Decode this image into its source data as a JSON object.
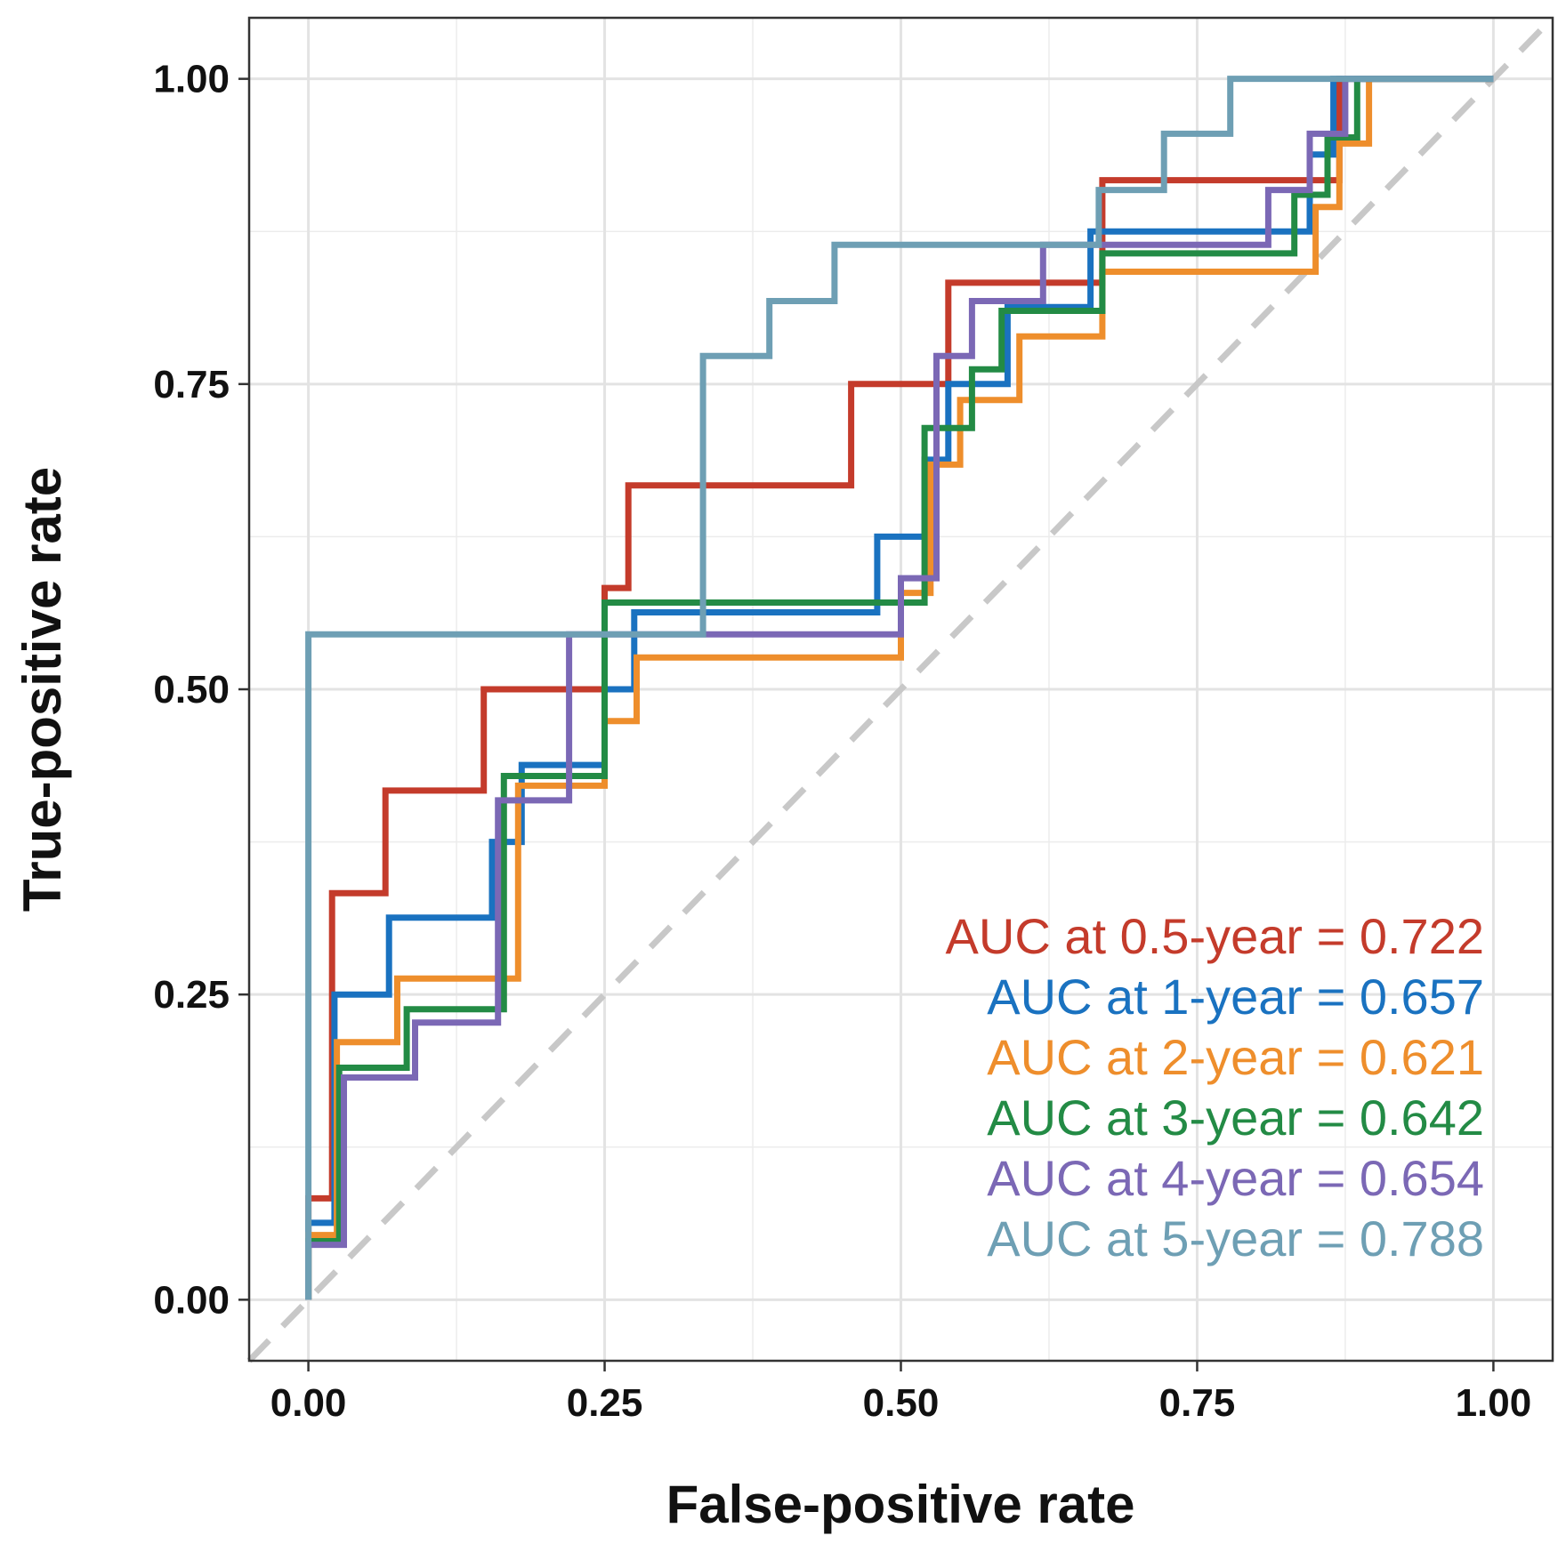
{
  "chart_data": {
    "type": "line",
    "subtype": "roc-step",
    "title": "",
    "xlabel": "False-positive rate",
    "ylabel": "True-positive rate",
    "xlim": [
      -0.05,
      1.05
    ],
    "ylim": [
      -0.05,
      1.05
    ],
    "grid": true,
    "x_ticks": [
      0.0,
      0.25,
      0.5,
      0.75,
      1.0
    ],
    "x_tick_labels": [
      "0.00",
      "0.25",
      "0.50",
      "0.75",
      "1.00"
    ],
    "y_ticks": [
      0.0,
      0.25,
      0.5,
      0.75,
      1.0
    ],
    "y_tick_labels": [
      "0.00",
      "0.25",
      "0.50",
      "0.75",
      "1.00"
    ],
    "reference_line": {
      "x": [
        -0.05,
        1.05
      ],
      "y": [
        -0.05,
        1.05
      ],
      "style": "dashed",
      "color": "#c8c8c8"
    },
    "legend_position": "bottom-right",
    "series": [
      {
        "name": "AUC at 0.5-year = 0.722",
        "color": "#c43b2b",
        "x": [
          0,
          0,
          0.02,
          0.02,
          0.065,
          0.065,
          0.148,
          0.148,
          0.25,
          0.25,
          0.27,
          0.27,
          0.458,
          0.458,
          0.54,
          0.54,
          0.67,
          0.67,
          0.85,
          0.85,
          0.85,
          0.87,
          0.87,
          1.0
        ],
        "y": [
          0,
          0.083,
          0.083,
          0.333,
          0.333,
          0.417,
          0.417,
          0.5,
          0.5,
          0.583,
          0.583,
          0.667,
          0.667,
          0.75,
          0.75,
          0.833,
          0.833,
          0.917,
          0.917,
          0.917,
          0.917,
          0.917,
          1.0,
          1.0
        ]
      },
      {
        "name": "AUC at 1-year = 0.657",
        "color": "#1a72c0",
        "x": [
          0,
          0,
          0.022,
          0.022,
          0.068,
          0.068,
          0.155,
          0.155,
          0.18,
          0.18,
          0.25,
          0.25,
          0.275,
          0.275,
          0.48,
          0.48,
          0.52,
          0.52,
          0.54,
          0.54,
          0.59,
          0.59,
          0.66,
          0.66,
          0.845,
          0.845,
          0.85,
          0.85,
          0.865,
          0.865,
          1.0
        ],
        "y": [
          0,
          0.063,
          0.063,
          0.25,
          0.25,
          0.313,
          0.313,
          0.375,
          0.375,
          0.438,
          0.438,
          0.5,
          0.5,
          0.563,
          0.563,
          0.625,
          0.625,
          0.688,
          0.688,
          0.75,
          0.75,
          0.813,
          0.813,
          0.875,
          0.875,
          0.938,
          0.938,
          0.938,
          0.938,
          1.0,
          1.0
        ]
      },
      {
        "name": "AUC at 2-year = 0.621",
        "color": "#ee8e2c",
        "x": [
          0,
          0,
          0.024,
          0.024,
          0.075,
          0.075,
          0.177,
          0.177,
          0.25,
          0.25,
          0.277,
          0.277,
          0.5,
          0.5,
          0.525,
          0.525,
          0.55,
          0.55,
          0.6,
          0.6,
          0.67,
          0.67,
          0.85,
          0.85,
          0.87,
          0.87,
          0.895,
          0.895,
          1.0
        ],
        "y": [
          0,
          0.053,
          0.053,
          0.211,
          0.211,
          0.263,
          0.263,
          0.421,
          0.421,
          0.474,
          0.474,
          0.526,
          0.526,
          0.579,
          0.579,
          0.684,
          0.684,
          0.737,
          0.737,
          0.789,
          0.789,
          0.842,
          0.842,
          0.895,
          0.895,
          0.947,
          0.947,
          1.0,
          1.0
        ]
      },
      {
        "name": "AUC at 3-year = 0.642",
        "color": "#238b45",
        "x": [
          0,
          0,
          0.026,
          0.026,
          0.083,
          0.083,
          0.165,
          0.165,
          0.25,
          0.25,
          0.52,
          0.52,
          0.56,
          0.56,
          0.585,
          0.585,
          0.67,
          0.67,
          0.832,
          0.832,
          0.86,
          0.86,
          0.885,
          0.885,
          1.0
        ],
        "y": [
          0,
          0.048,
          0.048,
          0.19,
          0.19,
          0.238,
          0.238,
          0.429,
          0.429,
          0.571,
          0.571,
          0.714,
          0.714,
          0.762,
          0.762,
          0.81,
          0.81,
          0.857,
          0.857,
          0.905,
          0.905,
          0.952,
          0.952,
          1.0,
          1.0
        ]
      },
      {
        "name": "AUC at 4-year = 0.654",
        "color": "#7b68b5",
        "x": [
          0,
          0,
          0.03,
          0.03,
          0.09,
          0.09,
          0.16,
          0.16,
          0.22,
          0.22,
          0.5,
          0.5,
          0.53,
          0.53,
          0.56,
          0.56,
          0.62,
          0.62,
          0.81,
          0.81,
          0.845,
          0.845,
          0.875,
          0.875,
          1.0
        ],
        "y": [
          0,
          0.045,
          0.045,
          0.182,
          0.182,
          0.227,
          0.227,
          0.409,
          0.409,
          0.545,
          0.545,
          0.591,
          0.591,
          0.773,
          0.773,
          0.818,
          0.818,
          0.864,
          0.864,
          0.909,
          0.909,
          0.955,
          0.955,
          1.0,
          1.0
        ]
      },
      {
        "name": "AUC at 5-year = 0.788",
        "color": "#6e9fb4",
        "x": [
          0,
          0,
          0.333,
          0.333,
          0.389,
          0.389,
          0.444,
          0.444,
          0.667,
          0.667,
          0.722,
          0.722,
          0.778,
          0.778,
          1.0
        ],
        "y": [
          0,
          0.545,
          0.545,
          0.773,
          0.773,
          0.818,
          0.818,
          0.864,
          0.864,
          0.909,
          0.909,
          0.955,
          0.955,
          1.0,
          1.0
        ]
      }
    ]
  }
}
